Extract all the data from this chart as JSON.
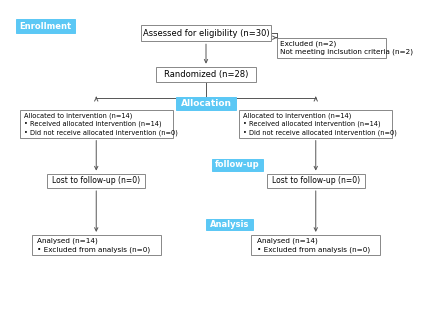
{
  "bg_color": "#ffffff",
  "blue_color": "#5bc8f5",
  "border_color": "#888888",
  "text_color": "#000000",
  "arrow_color": "#555555",
  "enrollment_label": "Enrollment",
  "eligibility_text": "Assessed for eligibility (n=30)",
  "excluded_text": "Excluded (n=2)\nNot meeting inclsution criteria (n=2)",
  "randomized_text": "Randomized (n=28)",
  "allocation_label": "Allocation",
  "left_alloc_text": "Allocated to intervention (n=14)\n• Received allocated intervention (n=14)\n• Did not receive allocated intervention (n=0)",
  "right_alloc_text": "Allocated to intervention (n=14)\n• Received allocated intervention (n=14)\n• Did not receive allocated intervention (n=0)",
  "followup_label": "follow-up",
  "left_followup_text": "Lost to follow-up (n=0)",
  "right_followup_text": "Lost to follow-up (n=0)",
  "analysis_label": "Analysis",
  "left_analysis_text": "Analysed (n=14)\n• Excluded from analysis (n=0)",
  "right_analysis_text": "Analysed (n=14)\n• Excluded from analysis (n=0)"
}
